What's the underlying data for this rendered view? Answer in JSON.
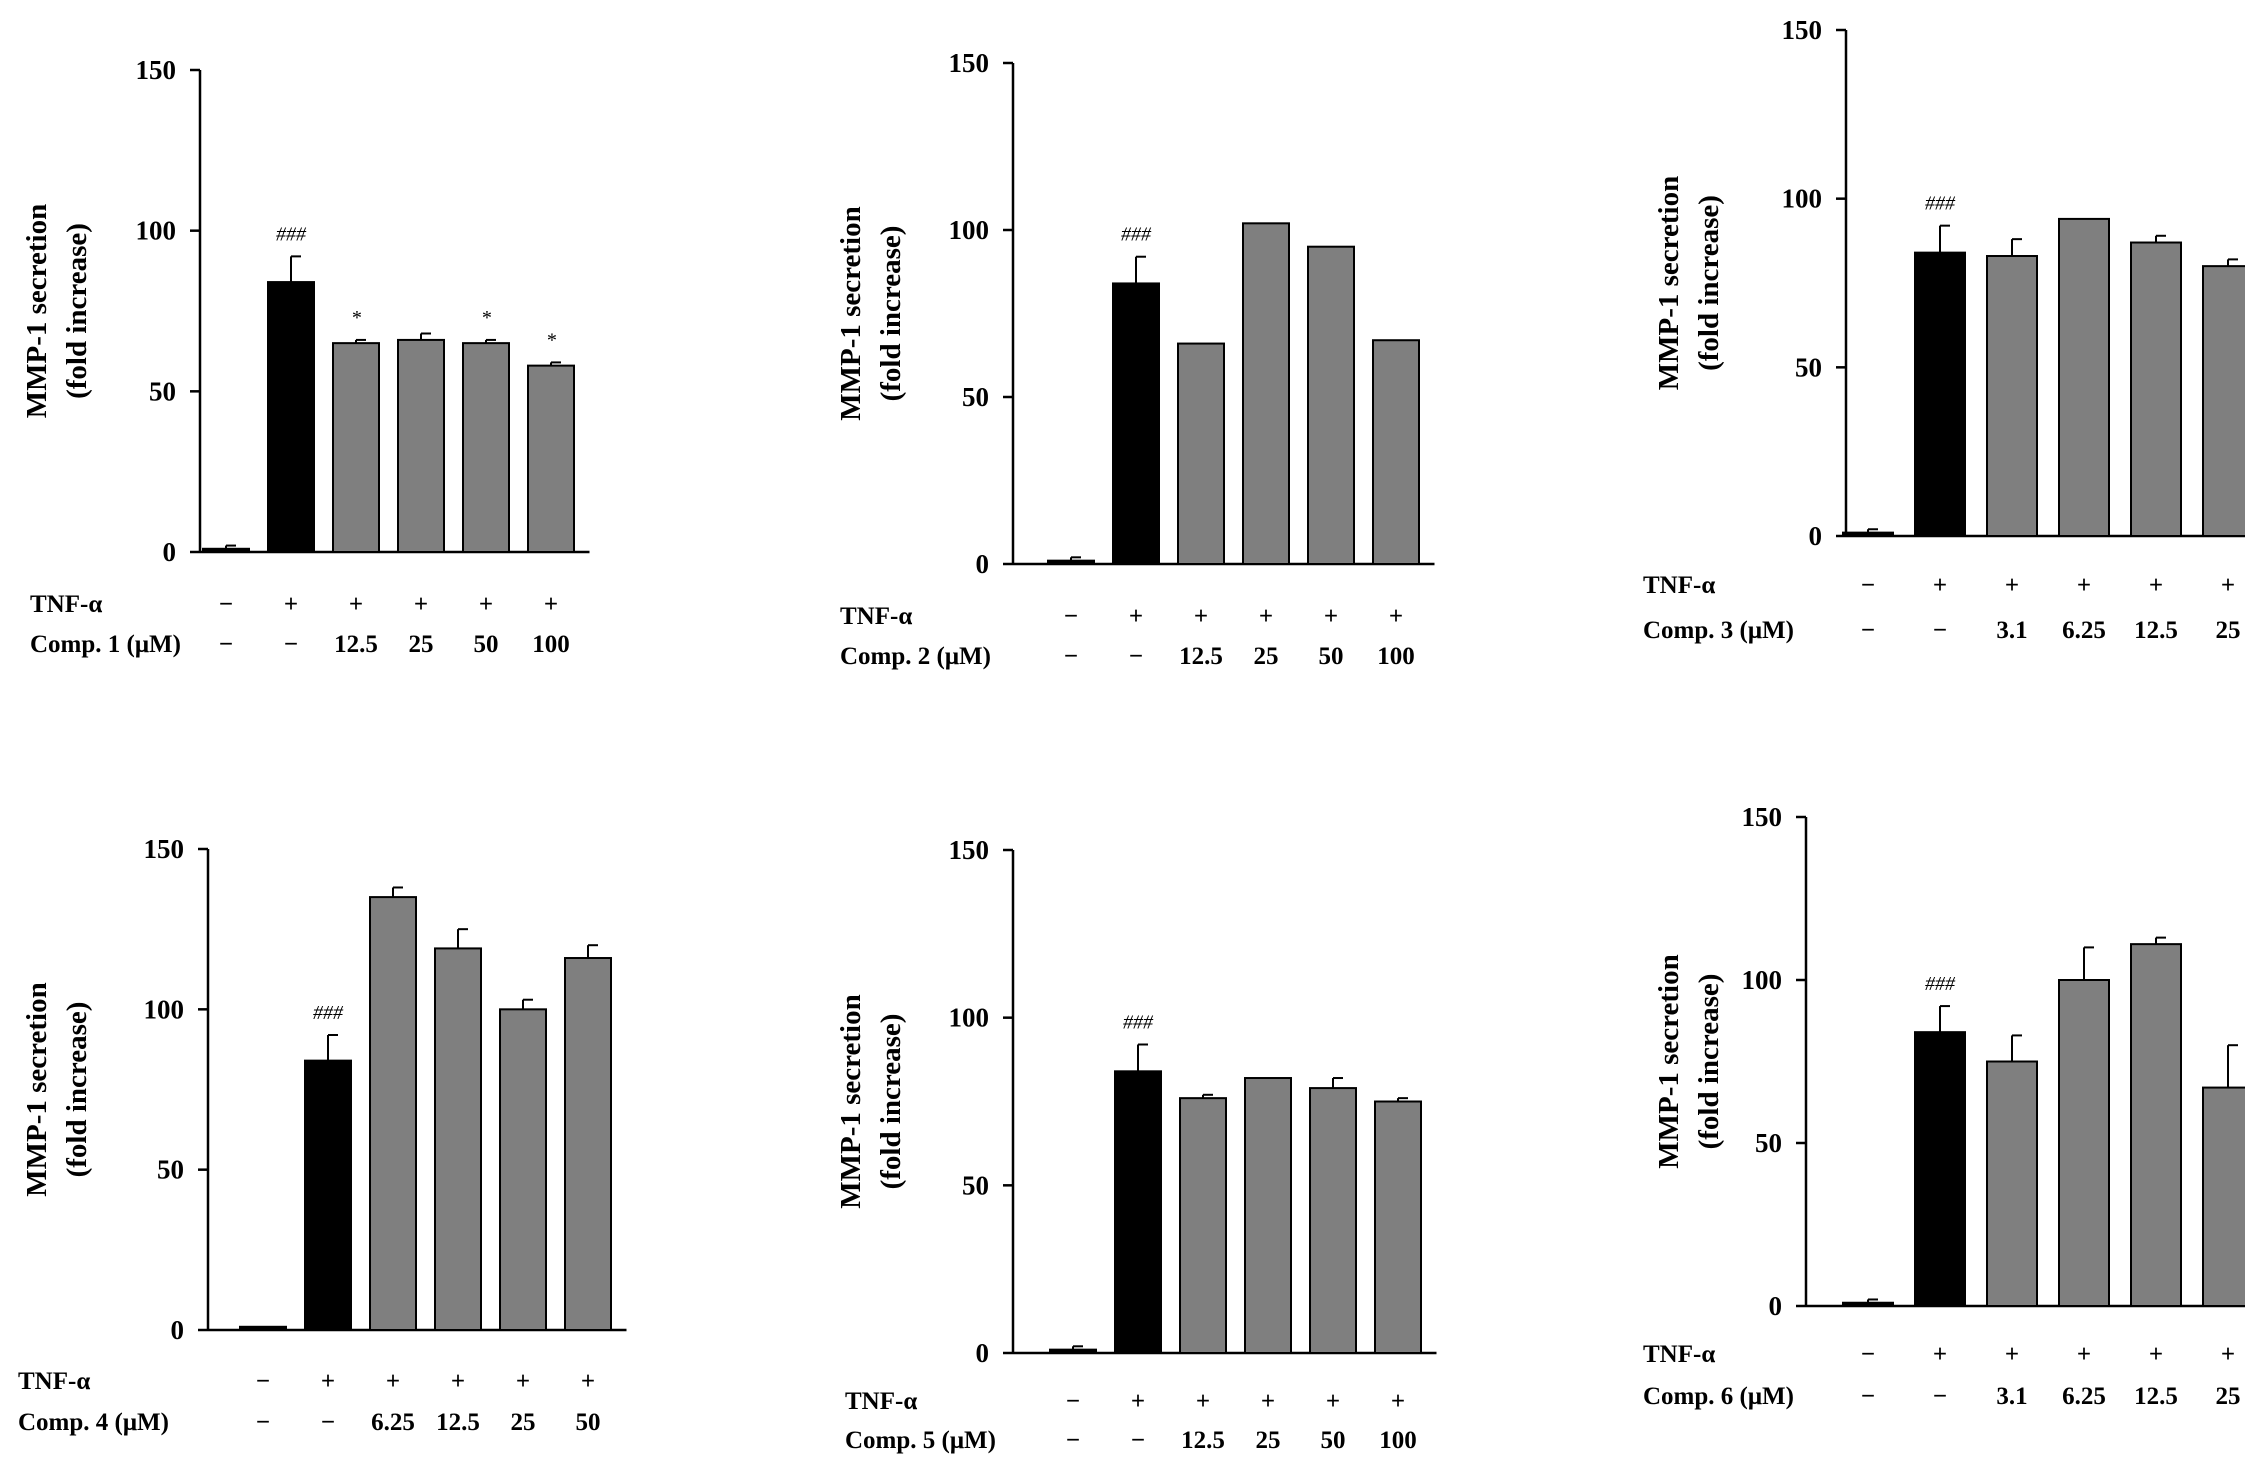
{
  "chart_data": [
    {
      "type": "bar",
      "ylabel": "MMP-1 secretion",
      "ylabel_sub": "(fold increase)",
      "ylim": [
        0,
        150
      ],
      "yticks": [
        0,
        50,
        100,
        150
      ],
      "values": [
        1,
        84,
        65,
        66,
        65,
        58
      ],
      "errors": [
        1,
        8,
        1,
        2,
        1,
        1
      ],
      "annotations": [
        "",
        "###",
        "*",
        "",
        "*",
        "*"
      ],
      "bar_colors": [
        "#000000",
        "#000000",
        "#7f7f7f",
        "#7f7f7f",
        "#7f7f7f",
        "#7f7f7f"
      ],
      "rows": [
        {
          "label": "TNF-α",
          "values": [
            "−",
            "+",
            "+",
            "+",
            "+",
            "+"
          ]
        },
        {
          "label": "Comp. 1 (μM)",
          "values": [
            "−",
            "−",
            "12.5",
            "25",
            "50",
            "100"
          ]
        }
      ]
    },
    {
      "type": "bar",
      "ylabel": "MMP-1 secretion",
      "ylabel_sub": "(fold increase)",
      "ylim": [
        0,
        150
      ],
      "yticks": [
        0,
        50,
        100,
        150
      ],
      "values": [
        1,
        84,
        66,
        102,
        95,
        67
      ],
      "errors": [
        1,
        8,
        0,
        0,
        0,
        0
      ],
      "annotations": [
        "",
        "###",
        "",
        "",
        "",
        ""
      ],
      "bar_colors": [
        "#000000",
        "#000000",
        "#7f7f7f",
        "#7f7f7f",
        "#7f7f7f",
        "#7f7f7f"
      ],
      "rows": [
        {
          "label": "TNF-α",
          "values": [
            "−",
            "+",
            "+",
            "+",
            "+",
            "+"
          ]
        },
        {
          "label": "Comp. 2 (μM)",
          "values": [
            "−",
            "−",
            "12.5",
            "25",
            "50",
            "100"
          ]
        }
      ]
    },
    {
      "type": "bar",
      "ylabel": "MMP-1 secretion",
      "ylabel_sub": "(fold increase)",
      "ylim": [
        0,
        150
      ],
      "yticks": [
        0,
        50,
        100,
        150
      ],
      "values": [
        1,
        84,
        83,
        94,
        87,
        80
      ],
      "errors": [
        1,
        8,
        5,
        0,
        2,
        2
      ],
      "annotations": [
        "",
        "###",
        "",
        "",
        "",
        ""
      ],
      "bar_colors": [
        "#000000",
        "#000000",
        "#7f7f7f",
        "#7f7f7f",
        "#7f7f7f",
        "#7f7f7f"
      ],
      "rows": [
        {
          "label": "TNF-α",
          "values": [
            "−",
            "+",
            "+",
            "+",
            "+",
            "+"
          ]
        },
        {
          "label": "Comp. 3 (μM)",
          "values": [
            "−",
            "−",
            "3.1",
            "6.25",
            "12.5",
            "25"
          ]
        }
      ]
    },
    {
      "type": "bar",
      "ylabel": "MMP-1 secretion",
      "ylabel_sub": "(fold increase)",
      "ylim": [
        0,
        150
      ],
      "yticks": [
        0,
        50,
        100,
        150
      ],
      "values": [
        1,
        84,
        135,
        119,
        100,
        116
      ],
      "errors": [
        0,
        8,
        3,
        6,
        3,
        4
      ],
      "annotations": [
        "",
        "###",
        "",
        "",
        "",
        ""
      ],
      "bar_colors": [
        "#000000",
        "#000000",
        "#7f7f7f",
        "#7f7f7f",
        "#7f7f7f",
        "#7f7f7f"
      ],
      "rows": [
        {
          "label": "TNF-α",
          "values": [
            "−",
            "+",
            "+",
            "+",
            "+",
            "+"
          ]
        },
        {
          "label": "Comp. 4 (μM)",
          "values": [
            "−",
            "−",
            "6.25",
            "12.5",
            "25",
            "50"
          ]
        }
      ]
    },
    {
      "type": "bar",
      "ylabel": "MMP-1 secretion",
      "ylabel_sub": "(fold increase)",
      "ylim": [
        0,
        150
      ],
      "yticks": [
        0,
        50,
        100,
        150
      ],
      "values": [
        1,
        84,
        76,
        82,
        79,
        75
      ],
      "errors": [
        1,
        8,
        1,
        0,
        3,
        1
      ],
      "annotations": [
        "",
        "###",
        "",
        "",
        "",
        ""
      ],
      "bar_colors": [
        "#000000",
        "#000000",
        "#7f7f7f",
        "#7f7f7f",
        "#7f7f7f",
        "#7f7f7f"
      ],
      "rows": [
        {
          "label": "TNF-α",
          "values": [
            "−",
            "+",
            "+",
            "+",
            "+",
            "+"
          ]
        },
        {
          "label": "Comp. 5 (μM)",
          "values": [
            "−",
            "−",
            "12.5",
            "25",
            "50",
            "100"
          ]
        }
      ]
    },
    {
      "type": "bar",
      "ylabel": "MMP-1 secretion",
      "ylabel_sub": "(fold increase)",
      "ylim": [
        0,
        150
      ],
      "yticks": [
        0,
        50,
        100,
        150
      ],
      "values": [
        1,
        84,
        75,
        100,
        111,
        67
      ],
      "errors": [
        1,
        8,
        8,
        10,
        2,
        13
      ],
      "annotations": [
        "",
        "###",
        "",
        "",
        "",
        ""
      ],
      "bar_colors": [
        "#000000",
        "#000000",
        "#7f7f7f",
        "#7f7f7f",
        "#7f7f7f",
        "#7f7f7f"
      ],
      "rows": [
        {
          "label": "TNF-α",
          "values": [
            "−",
            "+",
            "+",
            "+",
            "+",
            "+"
          ]
        },
        {
          "label": "Comp. 6 (μM)",
          "values": [
            "−",
            "−",
            "3.1",
            "6.25",
            "12.5",
            "25"
          ]
        }
      ]
    }
  ]
}
